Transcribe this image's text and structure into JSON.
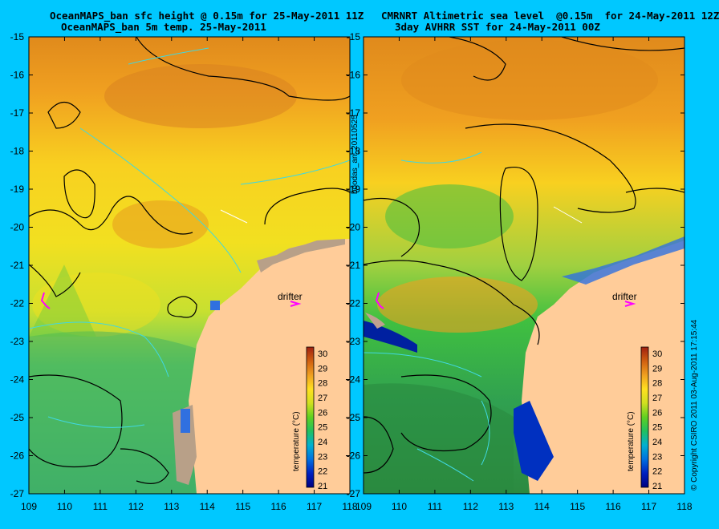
{
  "left_panel": {
    "title_line1": "OceanMAPS_ban sfc height @ 0.15m for 25-May-2011 11Z",
    "title_line2": "OceanMAPS_ban 5m temp. 25-May-2011"
  },
  "right_panel": {
    "title_line1": "CMRNRT Altimetric sea level  @0.15m  for 24-May-2011 12Z",
    "title_line2": "3day AVHRR SST for 24-May-2011 00Z"
  },
  "axes": {
    "x_ticks": [
      "109",
      "110",
      "111",
      "112",
      "113",
      "114",
      "115",
      "116",
      "117",
      "118"
    ],
    "y_ticks": [
      "-15",
      "-16",
      "-17",
      "-18",
      "-19",
      "-20",
      "-21",
      "-22",
      "-23",
      "-24",
      "-25",
      "-26",
      "-27"
    ]
  },
  "colorbar": {
    "label": "temperature (°C)",
    "ticks": [
      "30",
      "29",
      "28",
      "27",
      "26",
      "25",
      "24",
      "23",
      "22",
      "21"
    ]
  },
  "annotations": {
    "drifter_label": "drifter"
  },
  "side_labels": {
    "middle": "boodas_an_20110525",
    "right": "© Copyright CSIRO 2011   03-Aug-2011 17:15:44"
  },
  "colors": {
    "background": "#00c8ff",
    "land": "#ffcc99",
    "drifter": "#ff00ff"
  }
}
